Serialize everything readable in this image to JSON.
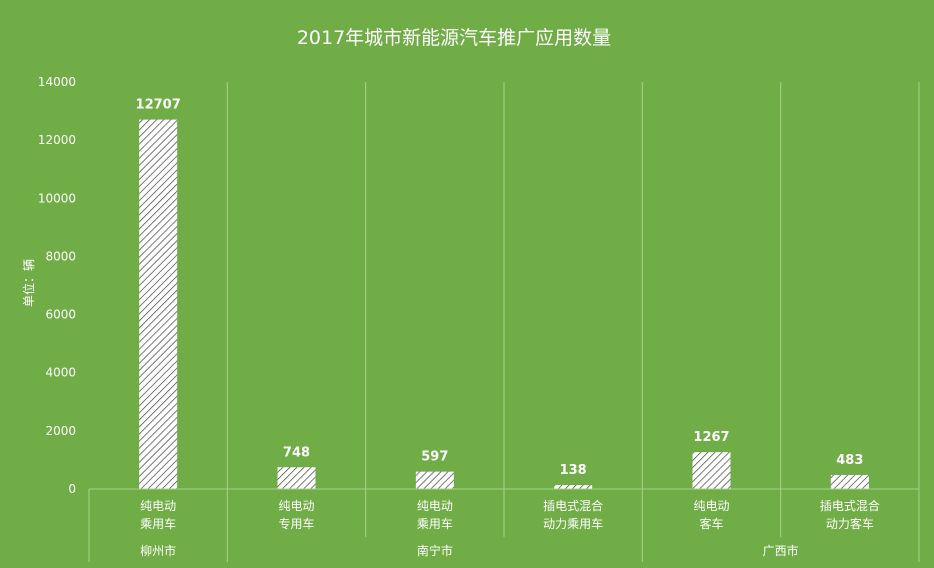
{
  "chart_data": {
    "type": "bar",
    "title": "2017年城市新能源汽车推广应用数量",
    "ylabel": "单位：辆",
    "ylim": [
      0,
      14000
    ],
    "yticks": [
      0,
      2000,
      4000,
      6000,
      8000,
      10000,
      12000,
      14000
    ],
    "grid": "vertical",
    "legend": "none",
    "categories": [
      {
        "line1": "纯电动",
        "line2": "乘用车"
      },
      {
        "line1": "纯电动",
        "line2": "专用车"
      },
      {
        "line1": "纯电动",
        "line2": "乘用车"
      },
      {
        "line1": "插电式混合",
        "line2": "动力乘用车"
      },
      {
        "line1": "纯电动",
        "line2": "客车"
      },
      {
        "line1": "插电式混合",
        "line2": "动力客车"
      }
    ],
    "values": [
      12707,
      748,
      597,
      138,
      1267,
      483
    ],
    "groups": [
      {
        "name": "柳州市",
        "count": 1
      },
      {
        "name": "南宁市",
        "count": 3
      },
      {
        "name": "广西市",
        "count": 2
      }
    ],
    "colors": {
      "background": "#70ad47",
      "text": "#ffffff",
      "bar_fill": "#ffffff",
      "bar_stripe": "#404040",
      "grid": "#a9d18e"
    }
  }
}
